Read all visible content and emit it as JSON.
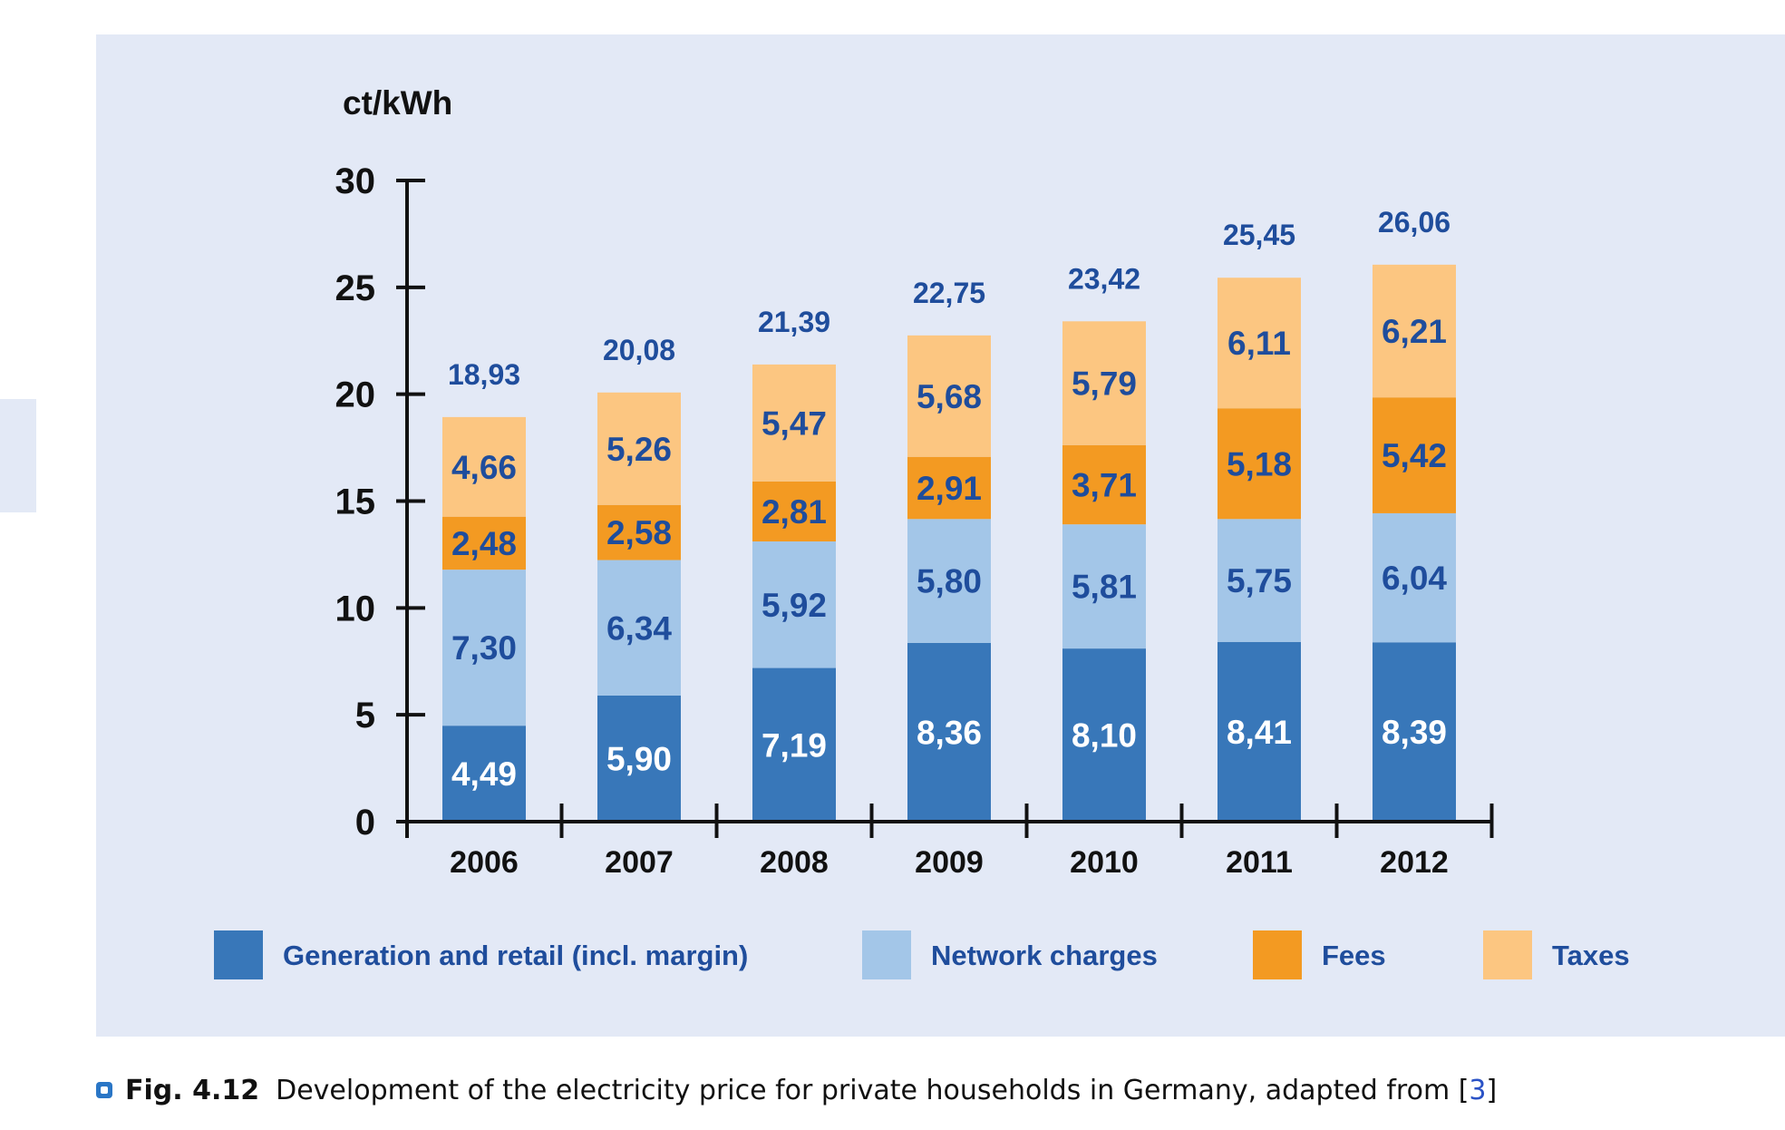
{
  "caption": {
    "label": "Fig. 4.12",
    "text": "Development of the electricity price for private households in Germany, adapted from [",
    "ref": "3",
    "close": "]"
  },
  "colors": {
    "panel_background": "#e3e9f6",
    "generation": "#3877b9",
    "network": "#a3c6e8",
    "fees": "#f39a22",
    "taxes": "#fcc681",
    "segment_label_dark": "#1f4d9c",
    "segment_label_light": "#ffffff",
    "axis": "#111111"
  },
  "chart_data": {
    "type": "bar",
    "stacked": true,
    "ylabel": "ct/kWh",
    "ylim": [
      0,
      30
    ],
    "yticks": [
      0,
      5,
      10,
      15,
      20,
      25,
      30
    ],
    "categories": [
      "2006",
      "2007",
      "2008",
      "2009",
      "2010",
      "2011",
      "2012"
    ],
    "series": [
      {
        "name": "Generation and retail (incl. margin)",
        "values": [
          4.49,
          5.9,
          7.19,
          8.36,
          8.1,
          8.41,
          8.39
        ],
        "labels": [
          "4,49",
          "5,90",
          "7,19",
          "8,36",
          "8,10",
          "8,41",
          "8,39"
        ],
        "color": "#3877b9",
        "label_color": "#ffffff"
      },
      {
        "name": "Network charges",
        "values": [
          7.3,
          6.34,
          5.92,
          5.8,
          5.81,
          5.75,
          6.04
        ],
        "labels": [
          "7,30",
          "6,34",
          "5,92",
          "5,80",
          "5,81",
          "5,75",
          "6,04"
        ],
        "color": "#a3c6e8",
        "label_color": "#1f4d9c"
      },
      {
        "name": "Fees",
        "values": [
          2.48,
          2.58,
          2.81,
          2.91,
          3.71,
          5.18,
          5.42
        ],
        "labels": [
          "2,48",
          "2,58",
          "2,81",
          "2,91",
          "3,71",
          "5,18",
          "5,42"
        ],
        "color": "#f39a22",
        "label_color": "#1f4d9c"
      },
      {
        "name": "Taxes",
        "values": [
          4.66,
          5.26,
          5.47,
          5.68,
          5.79,
          6.11,
          6.21
        ],
        "labels": [
          "4,66",
          "5,26",
          "5,47",
          "5,68",
          "5,79",
          "6,11",
          "6,21"
        ],
        "color": "#fcc681",
        "label_color": "#1f4d9c"
      }
    ],
    "totals": [
      18.93,
      20.08,
      21.39,
      22.75,
      23.42,
      25.45,
      26.06
    ],
    "total_labels": [
      "18,93",
      "20,08",
      "21,39",
      "22,75",
      "23,42",
      "25,45",
      "26,06"
    ],
    "legend_position": "bottom",
    "grid": false
  }
}
